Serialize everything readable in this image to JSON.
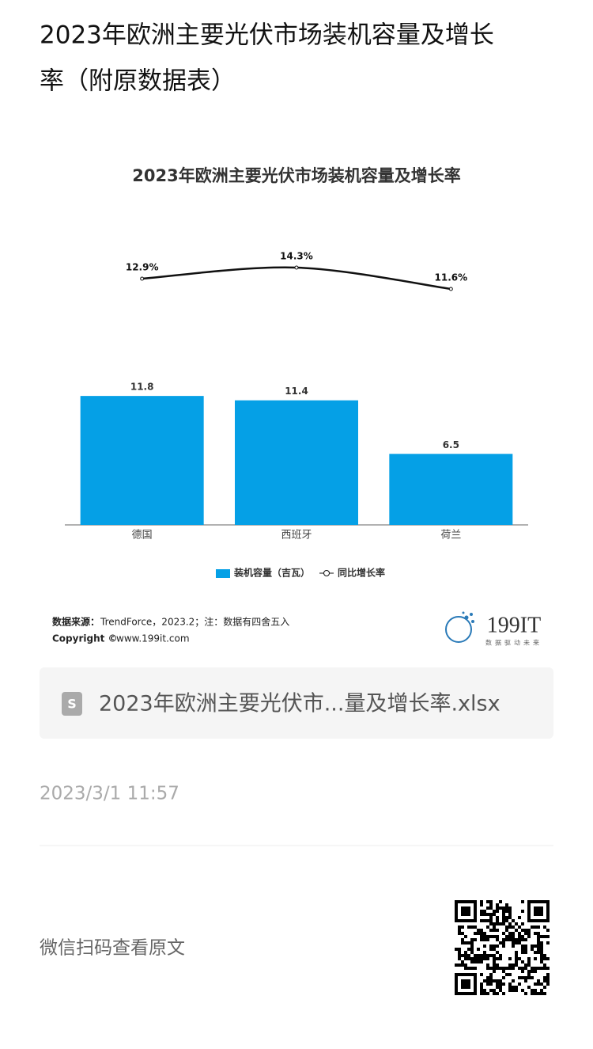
{
  "header": {
    "title_line1": "2023年欧洲主要光伏市场装机容量及增长",
    "title_line2": "率（附原数据表）"
  },
  "chart_data": {
    "type": "bar-line",
    "title": "2023年欧洲主要光伏市场装机容量及增长率",
    "categories": [
      "德国",
      "西班牙",
      "荷兰"
    ],
    "series": [
      {
        "name": "装机容量（吉瓦）",
        "type": "bar",
        "color": "#05a0e6",
        "values": [
          11.8,
          11.4,
          6.5
        ]
      },
      {
        "name": "同比增长率",
        "type": "line",
        "axis": "y2",
        "color": "#111111",
        "values": [
          12.9,
          14.3,
          11.6
        ],
        "value_labels": [
          "12.9%",
          "14.3%",
          "11.6%"
        ]
      }
    ],
    "ylim": [
      0,
      26.3
    ],
    "y2lim": [
      -18.2,
      18.1
    ],
    "grid": false,
    "legend": "bottom"
  },
  "source": {
    "label": "数据来源：",
    "text": "TrendForce，2023.2；注：数据有四舍五入",
    "copyright": "Copyright ©",
    "site": "www.199it.com"
  },
  "logo": {
    "name": "199IT",
    "slogan": "数据驱动未来"
  },
  "file": {
    "name": "2023年欧洲主要光伏市...量及增长率.xlsx"
  },
  "date": "2023/3/1 11:57",
  "qr_caption": "微信扫码查看原文"
}
